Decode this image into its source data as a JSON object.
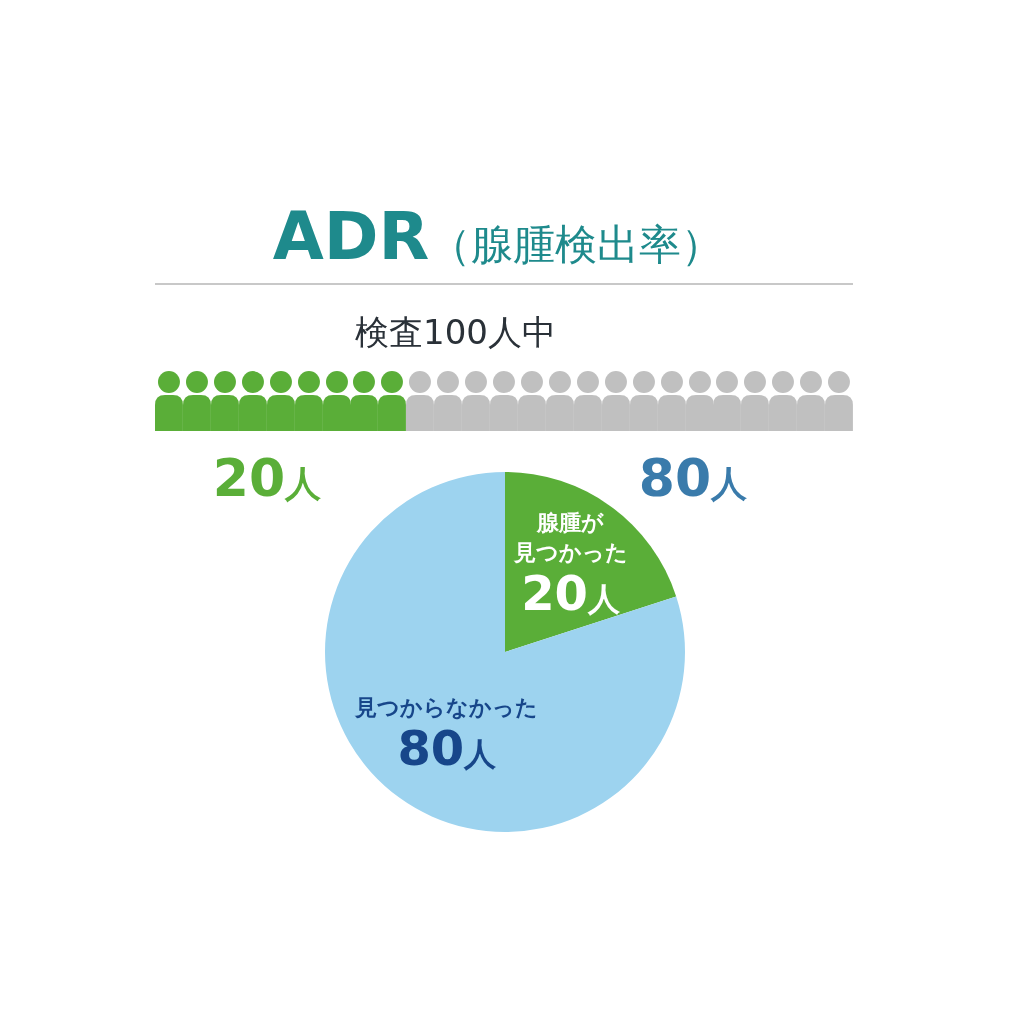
{
  "chart_data": {
    "type": "pie",
    "title": "ADR（腺腫検出率）",
    "subtitle": "検査100人中",
    "categories": [
      "腺腫が見つかった",
      "見つからなかった"
    ],
    "values": [
      20,
      80
    ],
    "colors": [
      "#5aae38",
      "#9dd3ef"
    ],
    "value_labels": [
      "20人",
      "80人"
    ],
    "annotations": [
      "20人",
      "80人"
    ]
  }
}
